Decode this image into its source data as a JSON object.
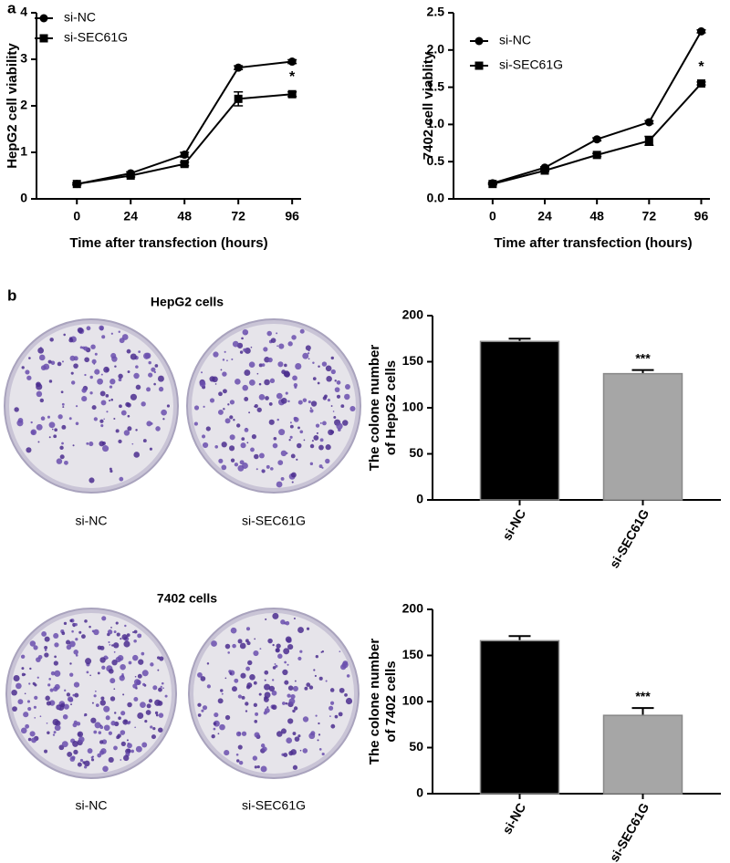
{
  "panel_labels": [
    "a",
    "b"
  ],
  "dish_panels": [
    {
      "title": "HepG2 cells",
      "labels": [
        "si-NC",
        "si-SEC61G"
      ]
    },
    {
      "title": "7402 cells",
      "labels": [
        "si-NC",
        "si-SEC61G"
      ]
    }
  ],
  "chart_data": [
    {
      "type": "line",
      "xlabel": "Time after transfection (hours)",
      "ylabel": "HepG2 cell viability",
      "x": [
        0,
        24,
        48,
        72,
        96
      ],
      "xlim": [
        -18,
        100
      ],
      "xticks": [
        0,
        24,
        48,
        72,
        96
      ],
      "ylim": [
        0,
        4
      ],
      "yticks": [
        0,
        1,
        2,
        3,
        4
      ],
      "legend": "upper left",
      "annotation": "*",
      "series": [
        {
          "name": "si-NC",
          "color": "#000000",
          "marker": "circle",
          "values": [
            0.32,
            0.55,
            0.95,
            2.82,
            2.95
          ],
          "errors": [
            0.02,
            0.03,
            0.05,
            0.04,
            0.04
          ]
        },
        {
          "name": "si-SEC61G",
          "color": "#000000",
          "marker": "square",
          "values": [
            0.32,
            0.5,
            0.75,
            2.15,
            2.25
          ],
          "errors": [
            0.02,
            0.03,
            0.04,
            0.15,
            0.05
          ]
        }
      ]
    },
    {
      "type": "line",
      "xlabel": "Time after transfection (hours)",
      "ylabel": "7402 cell viablity",
      "x": [
        0,
        24,
        48,
        72,
        96
      ],
      "xlim": [
        -18,
        100
      ],
      "xticks": [
        0,
        24,
        48,
        72,
        96
      ],
      "ylim": [
        0,
        2.5
      ],
      "yticks": [
        0.0,
        0.5,
        1.0,
        1.5,
        2.0,
        2.5
      ],
      "legend": "upper left",
      "annotation": "*",
      "series": [
        {
          "name": "si-NC",
          "color": "#000000",
          "marker": "circle",
          "values": [
            0.21,
            0.42,
            0.8,
            1.03,
            2.25
          ],
          "errors": [
            0.01,
            0.01,
            0.02,
            0.02,
            0.02
          ]
        },
        {
          "name": "si-SEC61G",
          "color": "#000000",
          "marker": "square",
          "values": [
            0.2,
            0.38,
            0.59,
            0.78,
            1.55
          ],
          "errors": [
            0.01,
            0.01,
            0.02,
            0.06,
            0.02
          ]
        }
      ]
    },
    {
      "type": "bar",
      "ylabel": [
        "The colone number",
        "of HepG2 cells"
      ],
      "categories": [
        "si-NC",
        "si-SEC61G"
      ],
      "values": [
        172,
        137
      ],
      "errors": [
        3,
        4
      ],
      "colors": [
        "#000000",
        "#a6a6a6"
      ],
      "ylim": [
        0,
        200
      ],
      "yticks": [
        0,
        50,
        100,
        150,
        200
      ],
      "annotation": "***"
    },
    {
      "type": "bar",
      "ylabel": [
        "The colone number",
        "of 7402 cells"
      ],
      "categories": [
        "si-NC",
        "si-SEC61G"
      ],
      "values": [
        166,
        85
      ],
      "errors": [
        5,
        8
      ],
      "colors": [
        "#000000",
        "#a6a6a6"
      ],
      "ylim": [
        0,
        200
      ],
      "yticks": [
        0,
        50,
        100,
        150,
        200
      ],
      "annotation": "***"
    }
  ]
}
